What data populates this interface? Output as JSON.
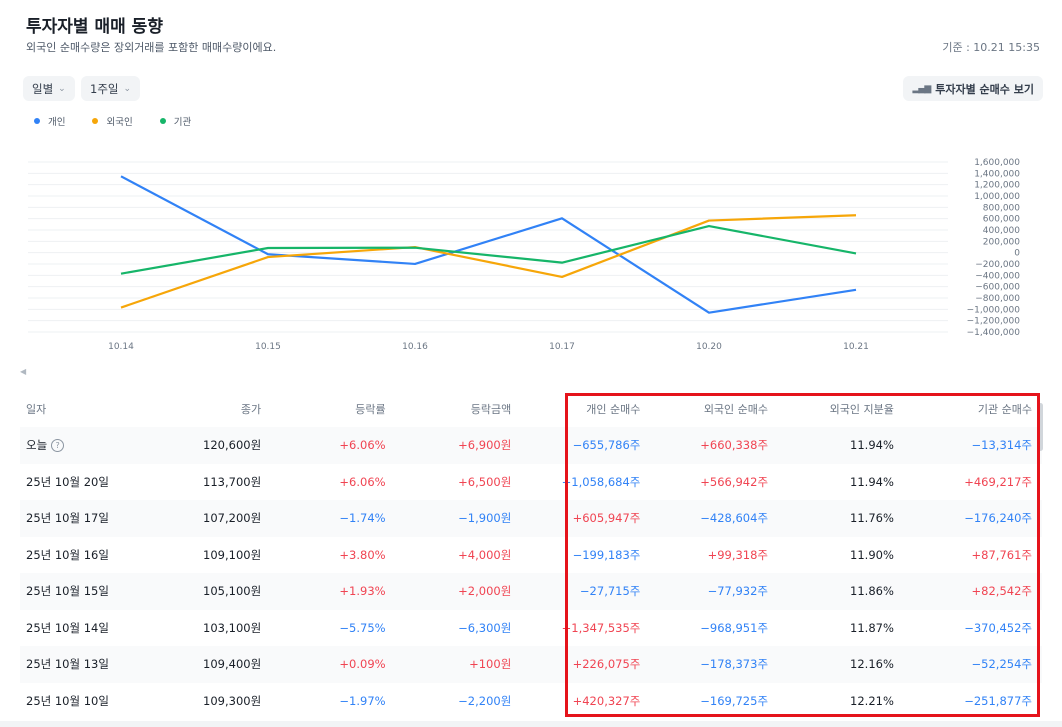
{
  "header": {
    "title": "투자자별 매매 동향",
    "subtitle": "외국인 순매수량은 장외거래를 포함한 매매수량이에요.",
    "basis": "기준 : 10.21 15:35"
  },
  "controls": {
    "period_unit": "일별",
    "range": "1주일",
    "net_buy_button": "투자자별 순매수 보기"
  },
  "colors": {
    "individual": "#3182f6",
    "foreign": "#f6a609",
    "institution": "#16b569",
    "up": "#f04452",
    "down": "#3182f6",
    "highlight": "#e5131b"
  },
  "chart_data": {
    "type": "line",
    "x": [
      "10.14",
      "10.15",
      "10.16",
      "10.17",
      "10.20",
      "10.21"
    ],
    "series": [
      {
        "name": "개인",
        "values": [
          1347535,
          -27715,
          -199183,
          605947,
          -1058684,
          -655786
        ]
      },
      {
        "name": "외국인",
        "values": [
          -968951,
          -77932,
          99318,
          -428604,
          566942,
          660338
        ]
      },
      {
        "name": "기관",
        "values": [
          -370452,
          82542,
          87761,
          -176240,
          469217,
          -13314
        ]
      }
    ],
    "ylim": [
      -1400000,
      1600000
    ],
    "yticks": [
      "1,600,000",
      "1,400,000",
      "1,200,000",
      "1,000,000",
      "800,000",
      "600,000",
      "400,000",
      "200,000",
      "0",
      "−200,000",
      "−400,000",
      "−600,000",
      "−800,000",
      "−1,000,000",
      "−1,200,000",
      "−1,400,000"
    ],
    "legend": [
      "개인",
      "외국인",
      "기관"
    ]
  },
  "table": {
    "headers": [
      "일자",
      "종가",
      "등락률",
      "등락금액",
      "개인 순매수",
      "외국인 순매수",
      "외국인 지분율",
      "기관 순매수"
    ],
    "rows": [
      [
        "오늘",
        "120,600원",
        "+6.06%",
        "+6,900원",
        "−655,786주",
        "+660,338주",
        "11.94%",
        "−13,314주"
      ],
      [
        "25년 10월 20일",
        "113,700원",
        "+6.06%",
        "+6,500원",
        "−1,058,684주",
        "+566,942주",
        "11.94%",
        "+469,217주"
      ],
      [
        "25년 10월 17일",
        "107,200원",
        "−1.74%",
        "−1,900원",
        "+605,947주",
        "−428,604주",
        "11.76%",
        "−176,240주"
      ],
      [
        "25년 10월 16일",
        "109,100원",
        "+3.80%",
        "+4,000원",
        "−199,183주",
        "+99,318주",
        "11.90%",
        "+87,761주"
      ],
      [
        "25년 10월 15일",
        "105,100원",
        "+1.93%",
        "+2,000원",
        "−27,715주",
        "−77,932주",
        "11.86%",
        "+82,542주"
      ],
      [
        "25년 10월 14일",
        "103,100원",
        "−5.75%",
        "−6,300원",
        "+1,347,535주",
        "−968,951주",
        "11.87%",
        "−370,452주"
      ],
      [
        "25년 10월 13일",
        "109,400원",
        "+0.09%",
        "+100원",
        "+226,075주",
        "−178,373주",
        "12.16%",
        "−52,254주"
      ],
      [
        "25년 10월 10일",
        "109,300원",
        "−1.97%",
        "−2,200원",
        "+420,327주",
        "−169,725주",
        "12.21%",
        "−251,877주"
      ]
    ]
  }
}
